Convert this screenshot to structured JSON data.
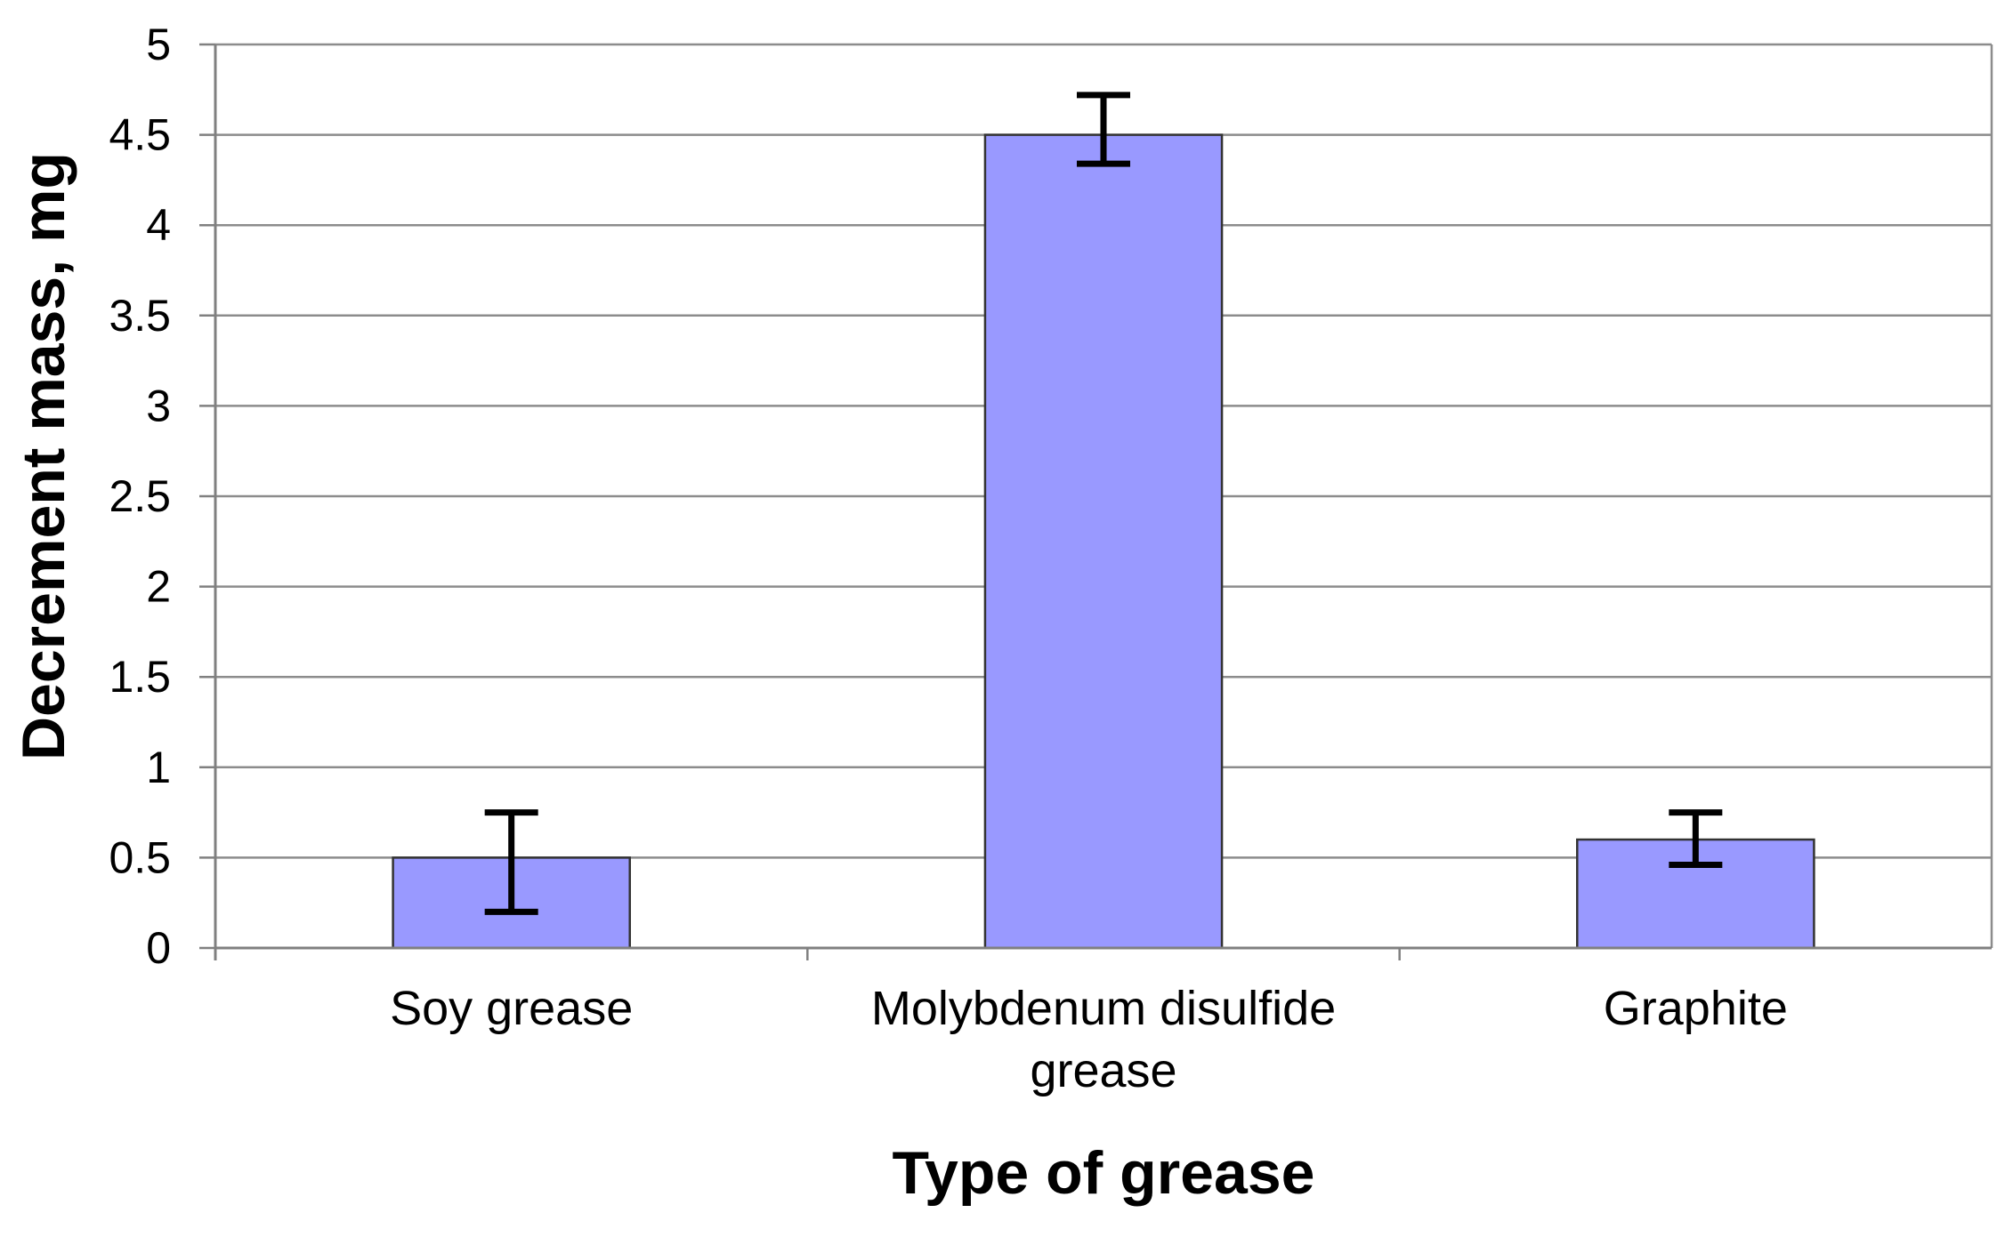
{
  "chart_data": {
    "type": "bar",
    "categories": [
      [
        "Soy grease"
      ],
      [
        "Molybdenum disulfide",
        "grease"
      ],
      [
        "Graphite"
      ]
    ],
    "values": [
      0.5,
      4.5,
      0.6
    ],
    "error_bars": [
      {
        "low": 0.2,
        "high": 0.75
      },
      {
        "low": 4.34,
        "high": 4.72
      },
      {
        "low": 0.46,
        "high": 0.75
      }
    ],
    "xlabel": "Type of grease",
    "ylabel": "Decrement mass, mg",
    "ylim": [
      0,
      5
    ],
    "yticks": [
      0,
      0.5,
      1,
      1.5,
      2,
      2.5,
      3,
      3.5,
      4,
      4.5,
      5
    ],
    "ytick_labels": [
      "0",
      "0.5",
      "1",
      "1.5",
      "2",
      "2.5",
      "3",
      "3.5",
      "4",
      "4.5",
      "5"
    ],
    "grid": true,
    "legend": "none",
    "colors": {
      "bar_fill": "#9999ff",
      "bar_stroke": "#333333",
      "grid": "#8c8c8c",
      "axis": "#808080",
      "error_bar": "#000000",
      "text": "#000000"
    }
  }
}
